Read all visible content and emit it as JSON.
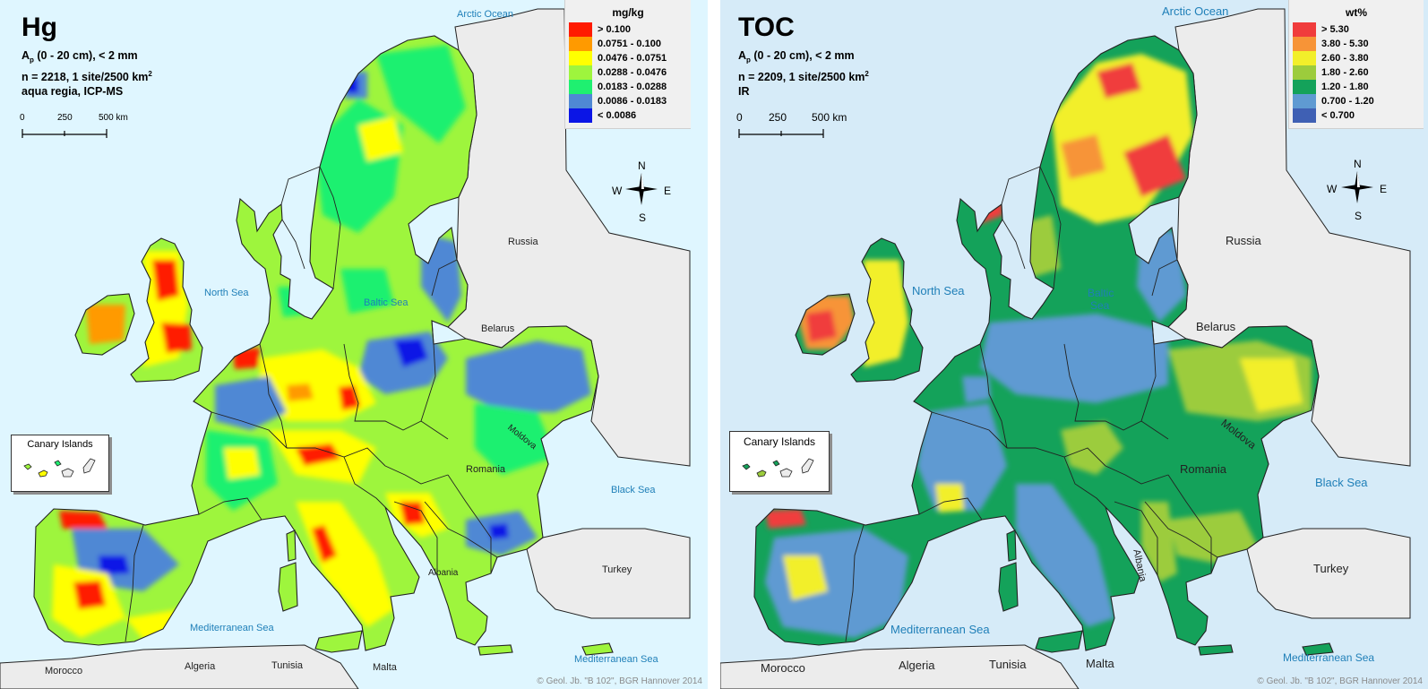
{
  "panels": {
    "left": {
      "title": "Hg",
      "sub_A": "A",
      "sub_p": "p",
      "sub_line1_rest": " (0 - 20 cm), < 2 mm",
      "sub_line2": "n = 2218, 1 site/2500 km",
      "sub_sup": "2",
      "sub_line3": "aqua regia, ICP-MS",
      "legend": {
        "unit": "mg/kg",
        "entries": [
          {
            "label": "> 0.100",
            "color": "#ff1a00"
          },
          {
            "label": "0.0751 - 0.100",
            "color": "#ff9a00"
          },
          {
            "label": "0.0476 - 0.0751",
            "color": "#ffff00"
          },
          {
            "label": "0.0288 - 0.0476",
            "color": "#9ef53d"
          },
          {
            "label": "0.0183 - 0.0288",
            "color": "#1ff070"
          },
          {
            "label": "0.0086 - 0.0183",
            "color": "#4f88d4"
          },
          {
            "label": "< 0.0086",
            "color": "#0b15e6"
          }
        ]
      },
      "scale": {
        "s0": "0",
        "s1": "250",
        "s2": "500 km"
      },
      "compass": {
        "n": "N",
        "e": "E",
        "s": "S",
        "w": "W"
      },
      "places": {
        "arctic_ocean": "Arctic Ocean",
        "north_sea": "North Sea",
        "baltic_sea": "Baltic Sea",
        "russia": "Russia",
        "belarus": "Belarus",
        "moldova": "Moldova",
        "romania": "Romania",
        "black_sea": "Black Sea",
        "turkey": "Turkey",
        "albania": "Albania",
        "mediterranean_sea": "Mediterranean Sea",
        "mediterranean_sea_2": "Mediterranean Sea",
        "morocco": "Morocco",
        "algeria": "Algeria",
        "tunisia": "Tunisia",
        "malta": "Malta"
      },
      "inset_title": "Canary Islands",
      "copyright": "© Geol. Jb. \"B 102\", BGR Hannover 2014"
    },
    "right": {
      "title": "TOC",
      "sub_A": "A",
      "sub_p": "p",
      "sub_line1_rest": " (0 - 20 cm), < 2 mm",
      "sub_line2": "n = 2209, 1 site/2500 km",
      "sub_sup": "2",
      "sub_line3": "IR",
      "legend": {
        "unit": "wt%",
        "entries": [
          {
            "label": "> 5.30",
            "color": "#f03c3c"
          },
          {
            "label": "3.80 - 5.30",
            "color": "#f79437"
          },
          {
            "label": "2.60 - 3.80",
            "color": "#f2ef2a"
          },
          {
            "label": "1.80 - 2.60",
            "color": "#9ccc3c"
          },
          {
            "label": "1.20 - 1.80",
            "color": "#14a25a"
          },
          {
            "label": "0.700 - 1.20",
            "color": "#5f9ad2"
          },
          {
            "label": "< 0.700",
            "color": "#3f60b4"
          }
        ]
      },
      "scale": {
        "s0": "0",
        "s1": "250",
        "s2": "500 km"
      },
      "compass": {
        "n": "N",
        "e": "E",
        "s": "S",
        "w": "W"
      },
      "places": {
        "arctic_ocean": "Arctic Ocean",
        "north_sea": "North Sea",
        "baltic_sea_1": "Baltic",
        "baltic_sea_2": "Sea",
        "russia": "Russia",
        "belarus": "Belarus",
        "moldova": "Moldova",
        "romania": "Romania",
        "black_sea": "Black Sea",
        "turkey": "Turkey",
        "albania": "Albania",
        "mediterranean_sea": "Mediterranean Sea",
        "mediterranean_sea_2": "Mediterranean Sea",
        "morocco": "Morocco",
        "algeria": "Algeria",
        "tunisia": "Tunisia",
        "malta": "Malta"
      },
      "inset_title": "Canary Islands",
      "copyright": "© Geol. Jb. \"B 102\", BGR Hannover 2014"
    }
  },
  "colors": {
    "left_sea": "#dff6ff",
    "right_sea": "#d6ebf8",
    "land_outside": "#ececec",
    "border": "#222222"
  }
}
